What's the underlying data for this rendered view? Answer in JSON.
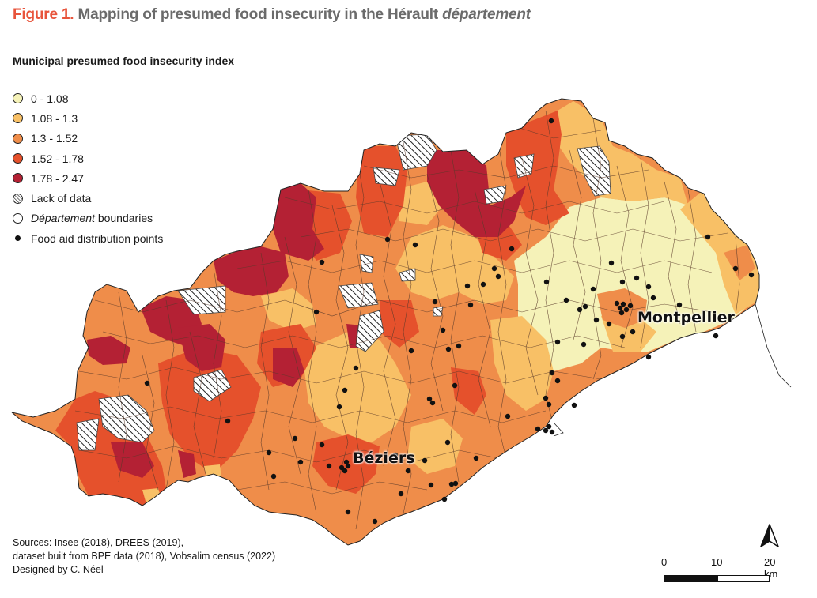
{
  "figure": {
    "label": "Figure 1.",
    "title": " Mapping of presumed food insecurity in the Hérault ",
    "title_italic": "département"
  },
  "legend": {
    "heading": "Municipal presumed food insecurity index",
    "classes": [
      {
        "label": "0 - 1.08",
        "color": "#f5f2b8"
      },
      {
        "label": "1.08 - 1.3",
        "color": "#f8c066"
      },
      {
        "label": "1.3 - 1.52",
        "color": "#ef8d4a"
      },
      {
        "label": "1.52 - 1.78",
        "color": "#e5512c"
      },
      {
        "label": "1.78 - 2.47",
        "color": "#b42134"
      }
    ],
    "no_data": "Lack of data",
    "boundaries_italic": "Département",
    "boundaries_rest": " boundaries",
    "points": "Food aid distribution points"
  },
  "cities": {
    "montpellier": "Montpellier",
    "beziers": "Béziers"
  },
  "scale": {
    "labels": [
      "0",
      "10",
      "20 km"
    ]
  },
  "sources": {
    "line1": "Sources: Insee (2018), DREES (2019),",
    "line2": "dataset built from BPE data (2018), Vobsalim census (2022)",
    "line3": "Designed by C. Néel"
  }
}
